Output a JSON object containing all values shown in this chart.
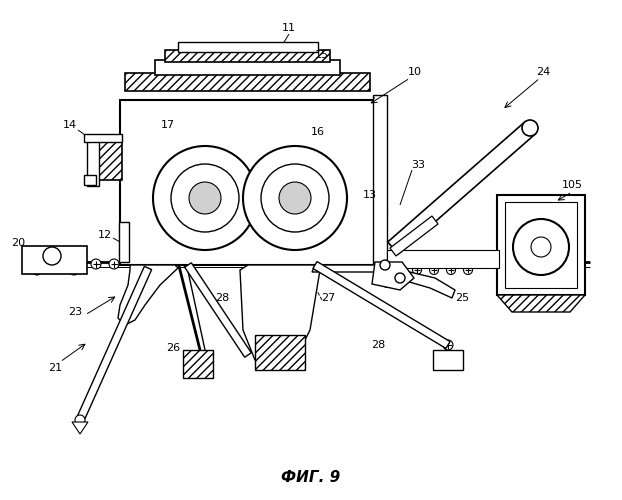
{
  "fig_label": "ФИГ. 9",
  "background_color": "#ffffff",
  "line_color": "#000000"
}
